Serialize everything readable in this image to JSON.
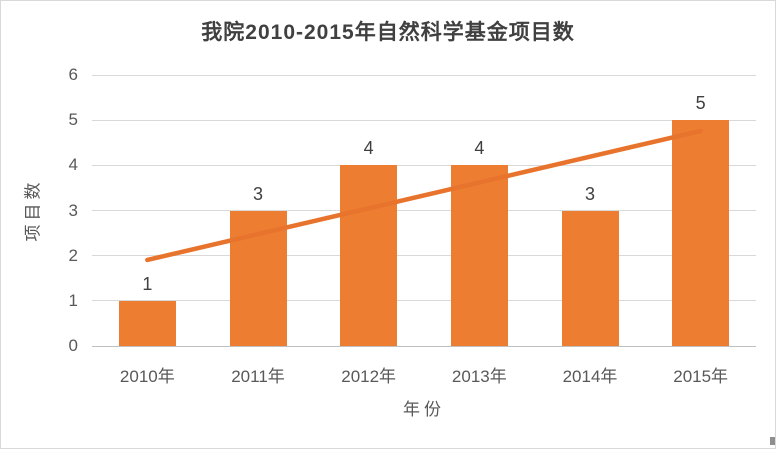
{
  "window": {
    "background": "#FFFFFF",
    "border_color": "#D9D9D9"
  },
  "chart_data": {
    "type": "bar",
    "title": "我院2010-2015年自然科学基金项目数",
    "categories": [
      "2010年",
      "2011年",
      "2012年",
      "2013年",
      "2014年",
      "2015年"
    ],
    "values": [
      1,
      3,
      4,
      4,
      3,
      5
    ],
    "data_labels": [
      "1",
      "3",
      "4",
      "4",
      "3",
      "5"
    ],
    "xlabel": "年份",
    "ylabel": "项目数",
    "ylim": [
      0,
      6
    ],
    "yticks": [
      "0",
      "1",
      "2",
      "3",
      "4",
      "5",
      "6"
    ],
    "grid": true,
    "legend": false,
    "trend": {
      "type": "linear",
      "y_start": 1.905,
      "y_end": 4.762
    },
    "colors": {
      "bar": "#ED7D31",
      "trendline": "#E8732C",
      "title_text": "#404040",
      "axis_text": "#595959",
      "data_label_text": "#404040",
      "gridline": "#D9D9D9",
      "axis_line": "#BFBFBF"
    }
  }
}
